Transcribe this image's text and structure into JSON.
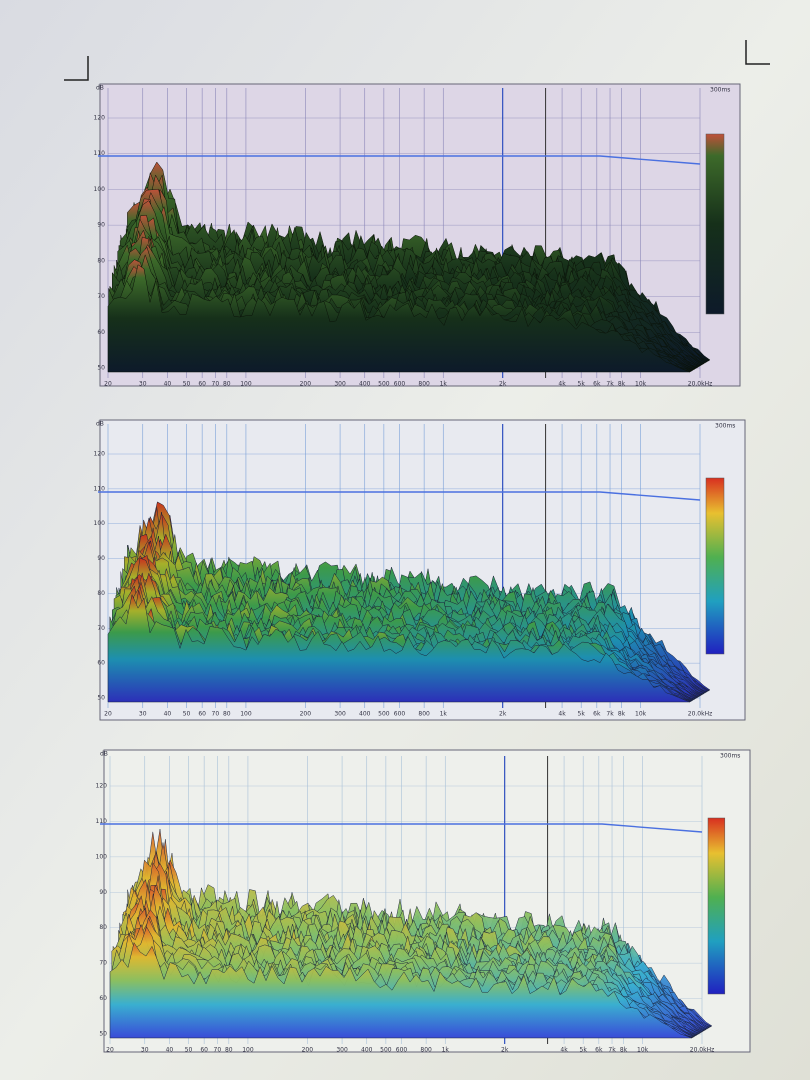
{
  "panels": [
    {
      "unit": "dB",
      "time_label": "300ms",
      "x_labels": [
        "20",
        "30",
        "40",
        "50",
        "60",
        "70",
        "80",
        "100",
        "200",
        "300",
        "400",
        "500",
        "600",
        "800",
        "1k",
        "2k",
        "4k",
        "5k",
        "6k",
        "7k",
        "8k",
        "10k",
        "20.0kHz"
      ],
      "y_labels": [
        "120",
        "110",
        "100",
        "90",
        "80",
        "70",
        "60",
        "50"
      ]
    },
    {
      "unit": "dB",
      "time_label": "300ms",
      "x_labels": [
        "20",
        "30",
        "40",
        "50",
        "60",
        "70",
        "80",
        "100",
        "200",
        "300",
        "400",
        "500",
        "600",
        "800",
        "1k",
        "2k",
        "4k",
        "5k",
        "6k",
        "7k",
        "8k",
        "10k",
        "20.0kHz"
      ],
      "y_labels": [
        "120",
        "110",
        "100",
        "90",
        "80",
        "70",
        "60",
        "50"
      ]
    },
    {
      "unit": "dB",
      "time_label": "300ms",
      "x_labels": [
        "20",
        "30",
        "40",
        "50",
        "60",
        "70",
        "80",
        "100",
        "200",
        "300",
        "400",
        "500",
        "600",
        "800",
        "1k",
        "2k",
        "4k",
        "5k",
        "6k",
        "7k",
        "8k",
        "10k",
        "20.0kHz"
      ],
      "y_labels": [
        "120",
        "110",
        "100",
        "90",
        "80",
        "70",
        "60",
        "50"
      ]
    }
  ]
}
